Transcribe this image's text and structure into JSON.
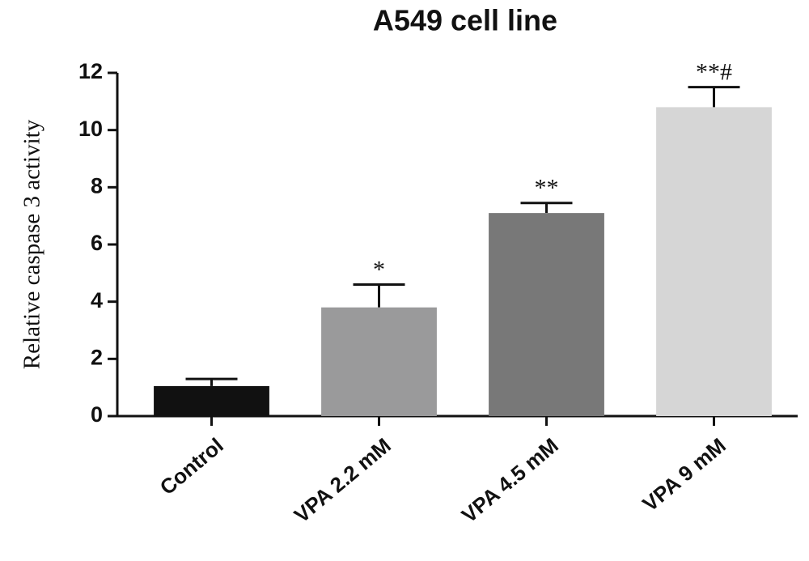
{
  "chart_data": {
    "type": "bar",
    "title": "A549 cell line",
    "y_label": "Relative caspase 3 activity",
    "categories": [
      "Control",
      "VPA 2.2 mM",
      "VPA 4.5 mM",
      "VPA 9 mM"
    ],
    "values": [
      1.05,
      3.8,
      7.1,
      10.8
    ],
    "errors": [
      0.25,
      0.8,
      0.35,
      0.7
    ],
    "annotations": [
      null,
      "*",
      "**",
      "**#"
    ],
    "colors": [
      "#111111",
      "#9a9a9b",
      "#787878",
      "#d6d6d6"
    ],
    "ylim": [
      0,
      12
    ],
    "yticks": [
      0,
      2,
      4,
      6,
      8,
      10,
      12
    ],
    "grid": false
  }
}
